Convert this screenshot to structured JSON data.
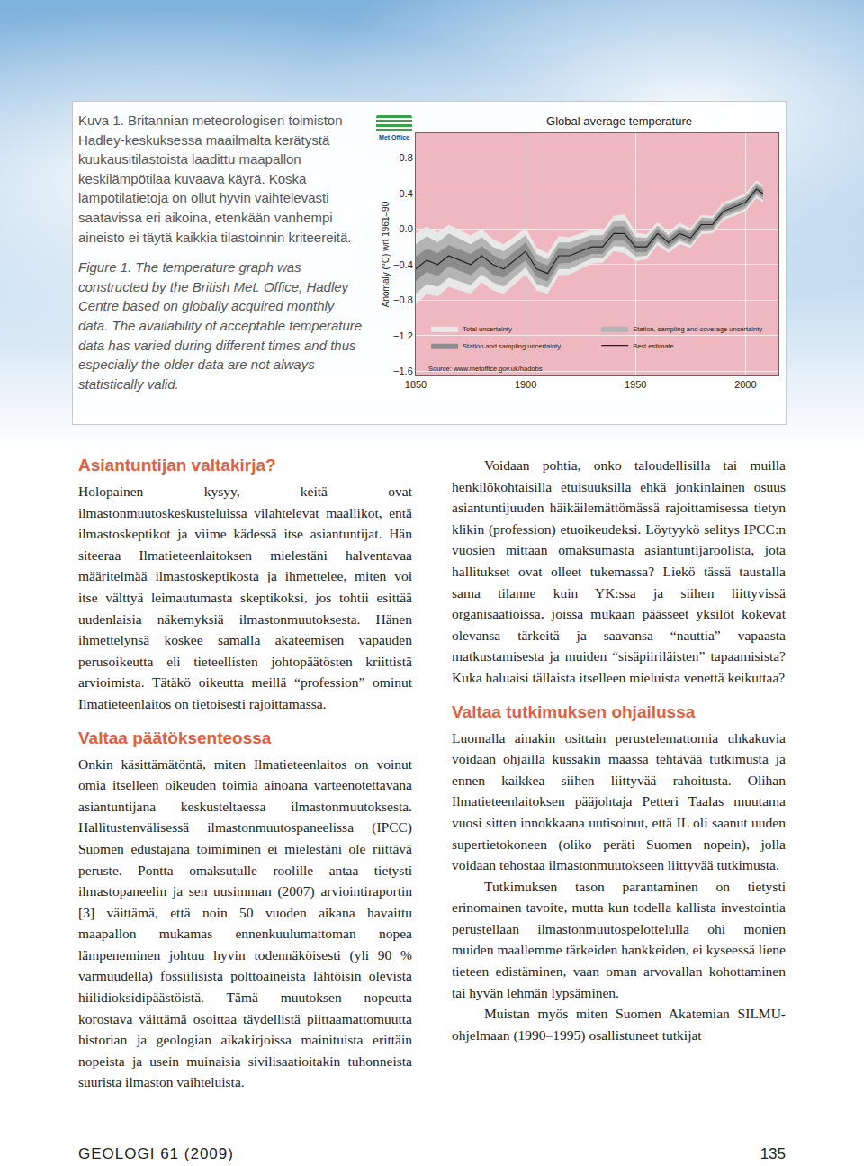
{
  "chart_data": {
    "type": "line",
    "title": "Global average temperature",
    "y_label": "Anomaly (°C) wrt 1961–90",
    "x": [
      1850,
      1855,
      1860,
      1865,
      1870,
      1875,
      1880,
      1885,
      1890,
      1895,
      1900,
      1905,
      1910,
      1915,
      1920,
      1925,
      1930,
      1935,
      1940,
      1945,
      1950,
      1955,
      1960,
      1965,
      1970,
      1975,
      1980,
      1985,
      1990,
      1995,
      2000,
      2005,
      2008
    ],
    "series": [
      {
        "name": "Best estimate",
        "color": "#222222",
        "values": [
          -0.45,
          -0.35,
          -0.4,
          -0.3,
          -0.35,
          -0.4,
          -0.3,
          -0.4,
          -0.45,
          -0.35,
          -0.25,
          -0.45,
          -0.5,
          -0.3,
          -0.3,
          -0.25,
          -0.2,
          -0.2,
          -0.05,
          -0.05,
          -0.2,
          -0.2,
          -0.05,
          -0.15,
          -0.05,
          -0.1,
          0.05,
          0.05,
          0.2,
          0.25,
          0.3,
          0.45,
          0.4
        ]
      }
    ],
    "bands": [
      {
        "name": "Total uncertainty",
        "color": "#e8e8e8",
        "error": [
          0.4,
          0.38,
          0.36,
          0.35,
          0.34,
          0.33,
          0.3,
          0.29,
          0.28,
          0.27,
          0.26,
          0.24,
          0.23,
          0.22,
          0.21,
          0.2,
          0.19,
          0.18,
          0.2,
          0.22,
          0.16,
          0.14,
          0.13,
          0.12,
          0.12,
          0.11,
          0.11,
          0.1,
          0.1,
          0.1,
          0.1,
          0.1,
          0.1
        ]
      },
      {
        "name": "Station, sampling and coverage uncertainty",
        "color": "#b4b4b4",
        "error": [
          0.28,
          0.27,
          0.25,
          0.25,
          0.24,
          0.23,
          0.21,
          0.2,
          0.2,
          0.19,
          0.18,
          0.17,
          0.16,
          0.15,
          0.15,
          0.14,
          0.13,
          0.13,
          0.14,
          0.15,
          0.11,
          0.1,
          0.09,
          0.08,
          0.08,
          0.08,
          0.08,
          0.07,
          0.07,
          0.07,
          0.07,
          0.07,
          0.07
        ]
      },
      {
        "name": "Station and sampling uncertainty",
        "color": "#8c8c8c",
        "error": [
          0.14,
          0.13,
          0.13,
          0.12,
          0.12,
          0.12,
          0.11,
          0.11,
          0.1,
          0.1,
          0.1,
          0.09,
          0.09,
          0.09,
          0.08,
          0.08,
          0.08,
          0.08,
          0.08,
          0.08,
          0.06,
          0.06,
          0.05,
          0.05,
          0.05,
          0.05,
          0.05,
          0.04,
          0.04,
          0.04,
          0.04,
          0.04,
          0.04
        ]
      }
    ],
    "xlim": [
      1850,
      2015
    ],
    "xticks": [
      1850,
      1900,
      1950,
      2000
    ],
    "ylim": [
      -1.65,
      1.08
    ],
    "yticks": [
      0.8,
      0.4,
      {
        "value": 0.0,
        "label": "0.0"
      },
      {
        "value": -0.4,
        "label": "−0.4"
      },
      {
        "value": -0.8,
        "label": "−0.8"
      },
      {
        "value": -1.2,
        "label": "−1.2"
      },
      {
        "value": -1.6,
        "label": "−1.6"
      }
    ],
    "grid": true,
    "legend": "lower left",
    "color": "#efb7c0",
    "source": "Source: www.metoffice.gov.uk/hadobs",
    "logo": "Met Office"
  },
  "caption": {
    "fi": "Kuva 1. Britannian meteorologisen toimiston Hadley-keskuksessa maailmalta kerätystä kuukausitilastoista laadittu maapallon keskilämpötilaa kuvaava käyrä. Koska lämpötilatietoja on ollut hyvin vaihtelevasti saatavissa eri aikoina, etenkään vanhempi aineisto ei täytä kaikkia tilastoinnin kriteereitä.",
    "en": "Figure 1. The temperature graph was constructed by the British Met. Office, Hadley Centre based on globally acquired monthly data. The availability of acceptable temperature data has varied during different times and thus especially the older data are not always statistically valid."
  },
  "columns": [
    [
      {
        "type": "heading",
        "text": "Asiantuntijan valtakirja?"
      },
      {
        "type": "paragraph",
        "text": "Holopainen kysyy, keitä ovat ilmastonmuutoskeskusteluissa vilahtelevat maallikot, entä ilmastoskeptikot ja viime kädessä itse asiantuntijat. Hän siteeraa Ilmatieteenlaitoksen mielestäni halventavaa määritelmää ilmastoskeptikosta ja ihmettelee, miten voi itse välttyä leimautumasta skeptikoksi, jos tohtii esittää uudenlaisia näkemyksiä ilmastonmuutoksesta. Hänen ihmettelynsä koskee samalla akateemisen vapauden perusoikeutta eli tieteellisten johtopäätösten kriittistä arvioimista. Tätäkö oikeutta meillä “profession” ominut Ilmatieteenlaitos on tietoisesti rajoittamassa."
      },
      {
        "type": "heading",
        "text": "Valtaa päätöksenteossa"
      },
      {
        "type": "paragraph",
        "text": "Onkin käsittämätöntä, miten Ilmatieteenlaitos on voinut omia itselleen oikeuden toimia ainoana varteenotettavana asiantuntijana keskusteltaessa ilmastonmuutoksesta. Hallitustenvälisessä ilmastonmuutospaneelissa (IPCC) Suomen edustajana toimiminen ei mielestäni ole riittävä peruste. Pontta omaksutulle roolille antaa tietysti ilmastopaneelin ja sen uusimman (2007) arviointiraportin [3] väittämä, että noin 50 vuoden aikana havaittu maapallon mukamas ennenkuulumattoman nopea lämpeneminen johtuu hyvin todennäköisesti (yli 90 % varmuudella) fossiilisista polttoaineista lähtöisin olevista hiilidioksidipäästöistä. Tämä muutoksen nopeutta korostava väittämä osoittaa täydellistä piittaamattomuutta historian ja geologian aikakirjoissa mainituista erittäin nopeista ja usein muinaisia sivilisaatioitakin tuhonneista suurista ilmaston vaihteluista."
      }
    ],
    [
      {
        "type": "paragraph",
        "text": "Voidaan pohtia, onko taloudellisilla tai muilla henkilökohtaisilla etuisuuksilla ehkä jonkinlainen osuus asiantuntijuuden häikäilemättömässä rajoittamisessa tietyn klikin (profession) etuoikeudeksi. Löytyykö selitys IPCC:n vuosien mittaan omaksumasta asiantuntijaroolista, jota hallitukset ovat olleet tukemassa? Liekö tässä taustalla sama tilanne kuin YK:ssa ja siihen liittyvissä organisaatioissa, joissa mukaan päässeet yksilöt kokevat olevansa tärkeitä ja saavansa “nauttia” vapaasta matkustamisesta ja muiden “sisäpiiriläisten” tapaamisista? Kuka haluaisi tällaista itselleen mieluista venettä keikuttaa?"
      },
      {
        "type": "heading",
        "text": "Valtaa tutkimuksen ohjailussa"
      },
      {
        "type": "paragraph",
        "text": "Luomalla ainakin osittain perustelemattomia uhkakuvia voidaan ohjailla kussakin maassa tehtävää tutkimusta ja ennen kaikkea siihen liittyvää rahoitusta. Olihan Ilmatieteenlaitoksen pääjohtaja Petteri Taalas muutama vuosi sitten innokkaana uutisoinut, että IL oli saanut uuden supertietokoneen (oliko peräti Suomen nopein), jolla voidaan tehostaa ilmastonmuutokseen liittyvää tutkimusta."
      },
      {
        "type": "paragraph",
        "text": "Tutkimuksen tason parantaminen on tietysti erinomainen tavoite, mutta kun todella kallista investointia perustellaan ilmastonmuutospelottelulla ohi monien muiden maallemme tärkeiden hankkeiden, ei kyseessä liene tieteen edistäminen, vaan oman arvovallan kohottaminen tai hyvän lehmän lypsäminen."
      },
      {
        "type": "paragraph",
        "text": "Muistan myös miten Suomen Akatemian SILMU-ohjelmaan (1990–1995) osallistuneet tutkijat"
      }
    ]
  ],
  "footer": {
    "left": "GEOLOGI 61 (2009)",
    "right": "135"
  }
}
